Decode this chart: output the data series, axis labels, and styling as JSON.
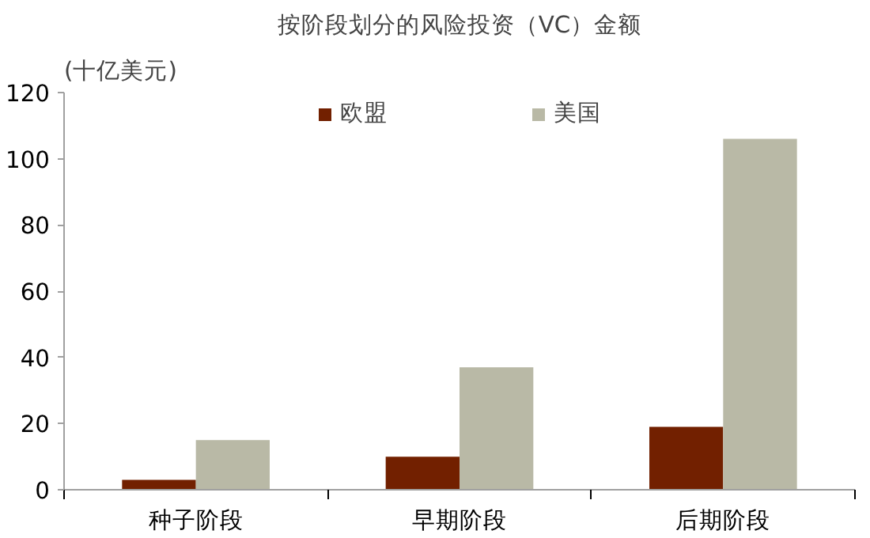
{
  "chart_data": {
    "type": "bar",
    "title": "按阶段划分的风险投资（VC）金额",
    "ylabel": "(十亿美元)",
    "categories": [
      "种子阶段",
      "早期阶段",
      "后期阶段"
    ],
    "series": [
      {
        "name": "欧盟",
        "color": "#722000",
        "values": [
          3,
          10,
          19
        ]
      },
      {
        "name": "美国",
        "color": "#b9b9a6",
        "values": [
          15,
          37,
          106
        ]
      }
    ],
    "ylim": [
      0,
      120
    ],
    "yticks": [
      0,
      20,
      40,
      60,
      80,
      100,
      120
    ],
    "grid": false,
    "legend": "top"
  }
}
